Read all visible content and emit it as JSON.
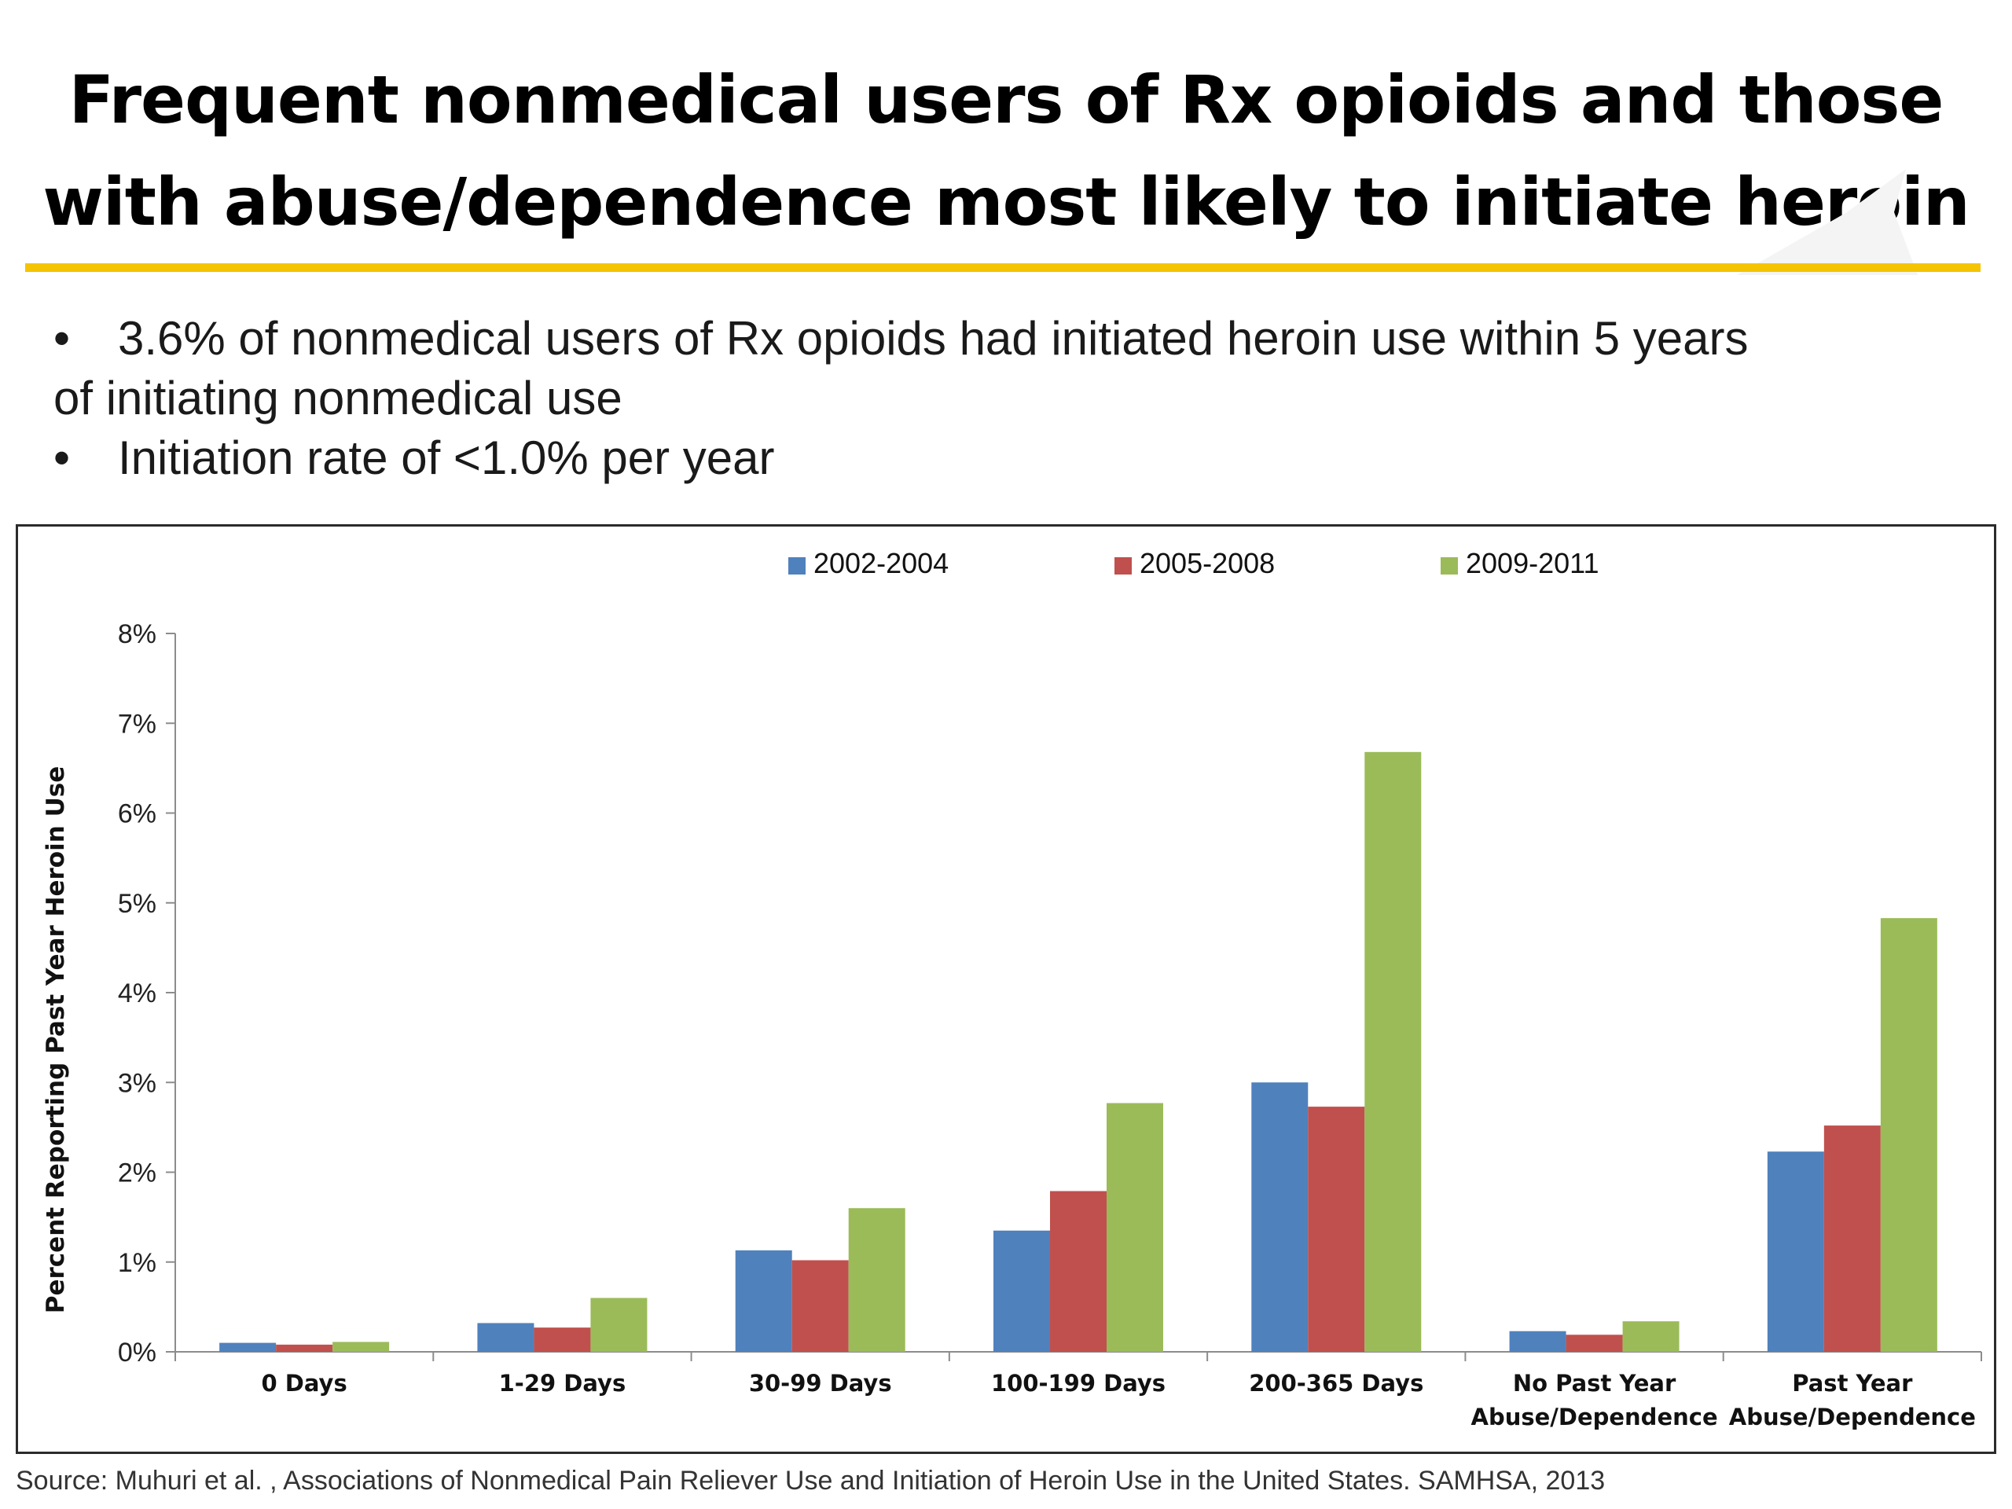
{
  "slide": {
    "title_lines": [
      "Frequent nonmedical users of Rx opioids and those",
      "with abuse/dependence most likely to initiate heroin"
    ],
    "bullets": [
      {
        "marker": "•",
        "lines": [
          "3.6% of nonmedical users of Rx opioids had initiated heroin use within 5 years",
          "of initiating nonmedical use"
        ]
      },
      {
        "marker": "•",
        "lines": [
          "Initiation rate of <1.0% per year"
        ]
      }
    ],
    "source": "Source: Muhuri et al. , Associations of Nonmedical Pain Reliever Use and Initiation of Heroin Use in the United States. SAMHSA, 2013",
    "colors": {
      "title_rule": "#f5c400"
    }
  },
  "chart_data": {
    "type": "bar",
    "title": "",
    "xlabel": "",
    "ylabel": "Percent Reporting Past Year Heroin Use",
    "ylim": [
      0,
      8
    ],
    "yticks": [
      "0%",
      "1%",
      "2%",
      "3%",
      "4%",
      "5%",
      "6%",
      "7%",
      "8%"
    ],
    "grid": false,
    "legend_position": "top",
    "categories": [
      [
        "0 Days"
      ],
      [
        "1-29 Days"
      ],
      [
        "30-99 Days"
      ],
      [
        "100-199 Days"
      ],
      [
        "200-365 Days"
      ],
      [
        "No Past Year",
        "Abuse/Dependence"
      ],
      [
        "Past Year",
        "Abuse/Dependence"
      ]
    ],
    "series": [
      {
        "name": "2002-2004",
        "color": "#4f81bd",
        "values": [
          0.1,
          0.32,
          1.13,
          1.35,
          3.0,
          0.23,
          2.23
        ]
      },
      {
        "name": "2005-2008",
        "color": "#c0504d",
        "values": [
          0.08,
          0.27,
          1.02,
          1.79,
          2.73,
          0.19,
          2.52
        ]
      },
      {
        "name": "2009-2011",
        "color": "#9bbb59",
        "values": [
          0.11,
          0.6,
          1.6,
          2.77,
          6.68,
          0.34,
          4.83
        ]
      }
    ]
  }
}
